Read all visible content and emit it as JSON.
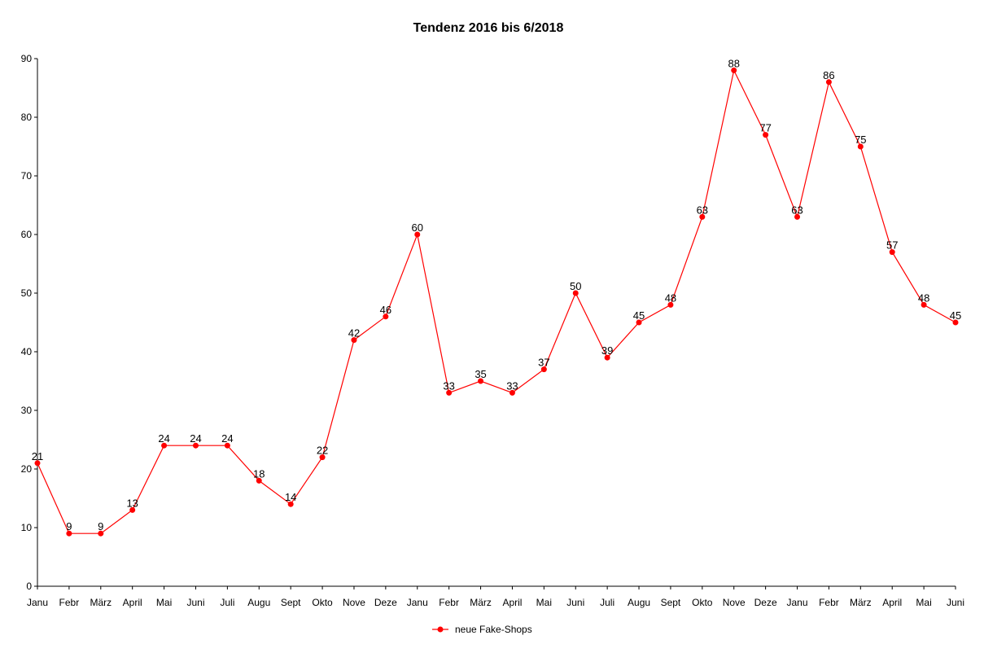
{
  "chart_data": {
    "type": "line",
    "title": "Tendenz 2016 bis 6/2018",
    "xlabel": "",
    "ylabel": "",
    "ylim": [
      0,
      90
    ],
    "yticks": [
      0,
      10,
      20,
      30,
      40,
      50,
      60,
      70,
      80,
      90
    ],
    "grid": false,
    "legend_position": "bottom",
    "series_color": "#ff0000",
    "categories": [
      "Janu",
      "Febr",
      "März",
      "April",
      "Mai",
      "Juni",
      "Juli",
      "Augu",
      "Sept",
      "Okto",
      "Nove",
      "Deze",
      "Janu",
      "Febr",
      "März",
      "April",
      "Mai",
      "Juni",
      "Juli",
      "Augu",
      "Sept",
      "Okto",
      "Nove",
      "Deze",
      "Janu",
      "Febr",
      "März",
      "April",
      "Mai",
      "Juni"
    ],
    "series": [
      {
        "name": "neue Fake-Shops",
        "values": [
          21,
          9,
          9,
          13,
          24,
          24,
          24,
          18,
          14,
          22,
          42,
          46,
          60,
          33,
          35,
          33,
          37,
          50,
          39,
          45,
          48,
          63,
          88,
          77,
          63,
          86,
          75,
          57,
          48,
          45
        ]
      }
    ]
  }
}
